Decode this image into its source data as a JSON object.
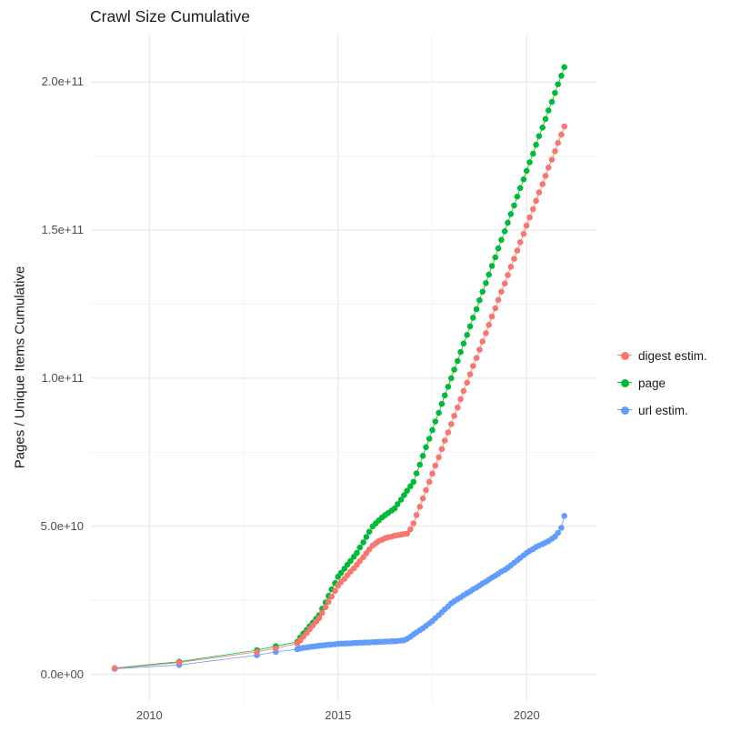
{
  "chart_data": {
    "type": "scatter",
    "title": "Crawl Size Cumulative",
    "xlabel": "",
    "ylabel": "Pages / Unique Items Cumulative",
    "y_unit": "values in units of 1e9 (billions); tick 50 = 5.0e+10",
    "xlim": [
      2008.45,
      2021.85
    ],
    "ylim": [
      -9,
      216
    ],
    "grid": true,
    "legend_position": "right",
    "axes": {
      "x_ticks": [
        2010,
        2015,
        2020
      ],
      "x_tick_labels": [
        "2010",
        "2015",
        "2020"
      ],
      "x_minor": [
        2012.5,
        2017.5
      ],
      "y_ticks": [
        0,
        50,
        100,
        150,
        200
      ],
      "y_tick_labels": [
        "0.0e+00",
        "5.0e+10",
        "1.0e+11",
        "1.5e+11",
        "2.0e+11"
      ],
      "y_minor": [
        25,
        75,
        125,
        175
      ]
    },
    "colors": {
      "digest": "#F8766D",
      "page": "#00BA38",
      "url": "#619CFF",
      "grid_major": "#E4E4E4",
      "grid_minor": "#F2F2F2"
    },
    "series": [
      {
        "name": "digest estim.",
        "color": "#F8766D",
        "points": [
          [
            2009.08,
            2.0
          ],
          [
            2010.79,
            4.0
          ],
          [
            2012.85,
            7.6
          ],
          [
            2013.35,
            8.8
          ],
          [
            2013.92,
            10.5
          ],
          [
            2014.0,
            11.5
          ],
          [
            2014.08,
            12.8
          ],
          [
            2014.17,
            14.0
          ],
          [
            2014.25,
            15.3
          ],
          [
            2014.33,
            16.5
          ],
          [
            2014.42,
            17.8
          ],
          [
            2014.5,
            19.0
          ],
          [
            2014.58,
            20.8
          ],
          [
            2014.67,
            22.7
          ],
          [
            2014.75,
            24.5
          ],
          [
            2014.83,
            26.3
          ],
          [
            2014.92,
            28.2
          ],
          [
            2015.0,
            30.0
          ],
          [
            2015.08,
            31.2
          ],
          [
            2015.17,
            32.3
          ],
          [
            2015.25,
            33.5
          ],
          [
            2015.33,
            34.7
          ],
          [
            2015.42,
            35.8
          ],
          [
            2015.5,
            37.0
          ],
          [
            2015.58,
            38.3
          ],
          [
            2015.67,
            39.6
          ],
          [
            2015.75,
            40.9
          ],
          [
            2015.83,
            42.2
          ],
          [
            2015.92,
            43.5
          ],
          [
            2016.0,
            44.3
          ],
          [
            2016.08,
            45.0
          ],
          [
            2016.17,
            45.5
          ],
          [
            2016.25,
            46.0
          ],
          [
            2016.33,
            46.3
          ],
          [
            2016.42,
            46.5
          ],
          [
            2016.5,
            46.8
          ],
          [
            2016.58,
            47.0
          ],
          [
            2016.67,
            47.2
          ],
          [
            2016.75,
            47.4
          ],
          [
            2016.83,
            47.5
          ],
          [
            2016.92,
            49.0
          ],
          [
            2017.0,
            51.0
          ],
          [
            2017.08,
            53.8
          ],
          [
            2017.17,
            56.6
          ],
          [
            2017.25,
            59.4
          ],
          [
            2017.33,
            62.2
          ],
          [
            2017.42,
            65.0
          ],
          [
            2017.5,
            67.8
          ],
          [
            2017.58,
            70.5
          ],
          [
            2017.67,
            73.3
          ],
          [
            2017.75,
            76.1
          ],
          [
            2017.83,
            78.9
          ],
          [
            2017.92,
            81.7
          ],
          [
            2018.0,
            84.5
          ],
          [
            2018.08,
            87.3
          ],
          [
            2018.17,
            90.1
          ],
          [
            2018.25,
            92.9
          ],
          [
            2018.33,
            95.7
          ],
          [
            2018.42,
            98.5
          ],
          [
            2018.5,
            101.3
          ],
          [
            2018.58,
            104.1
          ],
          [
            2018.67,
            106.8
          ],
          [
            2018.75,
            109.6
          ],
          [
            2018.83,
            112.4
          ],
          [
            2018.92,
            115.2
          ],
          [
            2019.0,
            118.0
          ],
          [
            2019.08,
            120.8
          ],
          [
            2019.17,
            123.6
          ],
          [
            2019.25,
            126.4
          ],
          [
            2019.33,
            129.2
          ],
          [
            2019.42,
            132.0
          ],
          [
            2019.5,
            134.8
          ],
          [
            2019.58,
            137.6
          ],
          [
            2019.67,
            140.3
          ],
          [
            2019.75,
            143.1
          ],
          [
            2019.83,
            145.9
          ],
          [
            2019.92,
            148.7
          ],
          [
            2020.0,
            151.5
          ],
          [
            2020.08,
            154.3
          ],
          [
            2020.17,
            157.1
          ],
          [
            2020.25,
            159.9
          ],
          [
            2020.33,
            162.7
          ],
          [
            2020.42,
            165.5
          ],
          [
            2020.5,
            168.3
          ],
          [
            2020.58,
            171.1
          ],
          [
            2020.67,
            173.8
          ],
          [
            2020.75,
            176.6
          ],
          [
            2020.83,
            179.4
          ],
          [
            2020.92,
            182.2
          ],
          [
            2021.0,
            185.0
          ]
        ]
      },
      {
        "name": "page",
        "color": "#00BA38",
        "points": [
          [
            2009.08,
            2.1
          ],
          [
            2010.79,
            4.3
          ],
          [
            2012.85,
            8.2
          ],
          [
            2013.35,
            9.5
          ],
          [
            2013.92,
            11.0
          ],
          [
            2014.0,
            12.5
          ],
          [
            2014.08,
            13.8
          ],
          [
            2014.17,
            15.0
          ],
          [
            2014.25,
            16.3
          ],
          [
            2014.33,
            17.5
          ],
          [
            2014.42,
            18.8
          ],
          [
            2014.5,
            20.0
          ],
          [
            2014.58,
            22.2
          ],
          [
            2014.67,
            24.3
          ],
          [
            2014.75,
            26.5
          ],
          [
            2014.83,
            28.7
          ],
          [
            2014.92,
            30.8
          ],
          [
            2015.0,
            33.0
          ],
          [
            2015.08,
            34.3
          ],
          [
            2015.17,
            35.7
          ],
          [
            2015.25,
            37.0
          ],
          [
            2015.33,
            38.3
          ],
          [
            2015.42,
            39.7
          ],
          [
            2015.5,
            41.0
          ],
          [
            2015.58,
            42.8
          ],
          [
            2015.67,
            44.6
          ],
          [
            2015.75,
            46.4
          ],
          [
            2015.83,
            48.2
          ],
          [
            2015.92,
            50.0
          ],
          [
            2016.0,
            51.0
          ],
          [
            2016.08,
            52.0
          ],
          [
            2016.17,
            53.0
          ],
          [
            2016.25,
            53.8
          ],
          [
            2016.33,
            54.5
          ],
          [
            2016.42,
            55.3
          ],
          [
            2016.5,
            56.0
          ],
          [
            2016.58,
            57.5
          ],
          [
            2016.67,
            59.0
          ],
          [
            2016.75,
            60.5
          ],
          [
            2016.83,
            62.0
          ],
          [
            2016.92,
            63.5
          ],
          [
            2017.0,
            65.0
          ],
          [
            2017.08,
            67.9
          ],
          [
            2017.17,
            70.8
          ],
          [
            2017.25,
            73.8
          ],
          [
            2017.33,
            76.7
          ],
          [
            2017.42,
            79.6
          ],
          [
            2017.5,
            82.5
          ],
          [
            2017.58,
            85.4
          ],
          [
            2017.67,
            88.3
          ],
          [
            2017.75,
            91.3
          ],
          [
            2017.83,
            94.2
          ],
          [
            2017.92,
            97.1
          ],
          [
            2018.0,
            100.0
          ],
          [
            2018.08,
            102.9
          ],
          [
            2018.17,
            105.8
          ],
          [
            2018.25,
            108.8
          ],
          [
            2018.33,
            111.7
          ],
          [
            2018.42,
            114.6
          ],
          [
            2018.5,
            117.5
          ],
          [
            2018.58,
            120.4
          ],
          [
            2018.67,
            123.3
          ],
          [
            2018.75,
            126.3
          ],
          [
            2018.83,
            129.2
          ],
          [
            2018.92,
            132.1
          ],
          [
            2019.0,
            135.0
          ],
          [
            2019.08,
            137.9
          ],
          [
            2019.17,
            140.8
          ],
          [
            2019.25,
            143.8
          ],
          [
            2019.33,
            146.7
          ],
          [
            2019.42,
            149.6
          ],
          [
            2019.5,
            152.5
          ],
          [
            2019.58,
            155.4
          ],
          [
            2019.67,
            158.3
          ],
          [
            2019.75,
            161.3
          ],
          [
            2019.83,
            164.2
          ],
          [
            2019.92,
            167.1
          ],
          [
            2020.0,
            170.0
          ],
          [
            2020.08,
            172.9
          ],
          [
            2020.17,
            175.8
          ],
          [
            2020.25,
            178.8
          ],
          [
            2020.33,
            181.7
          ],
          [
            2020.42,
            184.6
          ],
          [
            2020.5,
            187.5
          ],
          [
            2020.58,
            190.4
          ],
          [
            2020.67,
            193.3
          ],
          [
            2020.75,
            196.3
          ],
          [
            2020.83,
            199.2
          ],
          [
            2020.92,
            202.1
          ],
          [
            2021.0,
            205.0
          ]
        ]
      },
      {
        "name": "url estim.",
        "color": "#619CFF",
        "points": [
          [
            2009.08,
            1.9
          ],
          [
            2010.79,
            3.2
          ],
          [
            2012.85,
            6.5
          ],
          [
            2013.35,
            7.6
          ],
          [
            2013.92,
            8.5
          ],
          [
            2014.0,
            8.8
          ],
          [
            2014.08,
            9.0
          ],
          [
            2014.17,
            9.1
          ],
          [
            2014.25,
            9.3
          ],
          [
            2014.33,
            9.4
          ],
          [
            2014.42,
            9.5
          ],
          [
            2014.5,
            9.7
          ],
          [
            2014.58,
            9.8
          ],
          [
            2014.67,
            9.9
          ],
          [
            2014.75,
            10.0
          ],
          [
            2014.83,
            10.1
          ],
          [
            2014.92,
            10.2
          ],
          [
            2015.0,
            10.3
          ],
          [
            2015.08,
            10.4
          ],
          [
            2015.17,
            10.4
          ],
          [
            2015.25,
            10.5
          ],
          [
            2015.33,
            10.5
          ],
          [
            2015.42,
            10.6
          ],
          [
            2015.5,
            10.6
          ],
          [
            2015.58,
            10.7
          ],
          [
            2015.67,
            10.7
          ],
          [
            2015.75,
            10.8
          ],
          [
            2015.83,
            10.8
          ],
          [
            2015.92,
            10.9
          ],
          [
            2016.0,
            10.9
          ],
          [
            2016.08,
            11.0
          ],
          [
            2016.17,
            11.0
          ],
          [
            2016.25,
            11.1
          ],
          [
            2016.33,
            11.1
          ],
          [
            2016.42,
            11.2
          ],
          [
            2016.5,
            11.2
          ],
          [
            2016.58,
            11.3
          ],
          [
            2016.67,
            11.4
          ],
          [
            2016.75,
            11.5
          ],
          [
            2016.83,
            12.0
          ],
          [
            2016.92,
            12.7
          ],
          [
            2017.0,
            13.5
          ],
          [
            2017.08,
            14.2
          ],
          [
            2017.17,
            14.9
          ],
          [
            2017.25,
            15.6
          ],
          [
            2017.33,
            16.4
          ],
          [
            2017.42,
            17.2
          ],
          [
            2017.5,
            18.0
          ],
          [
            2017.58,
            19.0
          ],
          [
            2017.67,
            20.0
          ],
          [
            2017.75,
            21.0
          ],
          [
            2017.83,
            22.0
          ],
          [
            2017.92,
            23.0
          ],
          [
            2018.0,
            24.0
          ],
          [
            2018.08,
            24.7
          ],
          [
            2018.17,
            25.4
          ],
          [
            2018.25,
            26.0
          ],
          [
            2018.33,
            26.7
          ],
          [
            2018.42,
            27.4
          ],
          [
            2018.5,
            28.0
          ],
          [
            2018.58,
            28.7
          ],
          [
            2018.67,
            29.3
          ],
          [
            2018.75,
            30.0
          ],
          [
            2018.83,
            30.7
          ],
          [
            2018.92,
            31.3
          ],
          [
            2019.0,
            32.0
          ],
          [
            2019.08,
            32.7
          ],
          [
            2019.17,
            33.3
          ],
          [
            2019.25,
            34.0
          ],
          [
            2019.33,
            34.7
          ],
          [
            2019.42,
            35.3
          ],
          [
            2019.5,
            36.0
          ],
          [
            2019.58,
            36.8
          ],
          [
            2019.67,
            37.7
          ],
          [
            2019.75,
            38.5
          ],
          [
            2019.83,
            39.3
          ],
          [
            2019.92,
            40.2
          ],
          [
            2020.0,
            41.0
          ],
          [
            2020.08,
            41.7
          ],
          [
            2020.17,
            42.3
          ],
          [
            2020.25,
            43.0
          ],
          [
            2020.33,
            43.5
          ],
          [
            2020.42,
            44.0
          ],
          [
            2020.5,
            44.5
          ],
          [
            2020.58,
            45.0
          ],
          [
            2020.67,
            45.8
          ],
          [
            2020.75,
            46.5
          ],
          [
            2020.83,
            47.8
          ],
          [
            2020.92,
            49.5
          ],
          [
            2021.0,
            53.5
          ]
        ]
      }
    ]
  }
}
